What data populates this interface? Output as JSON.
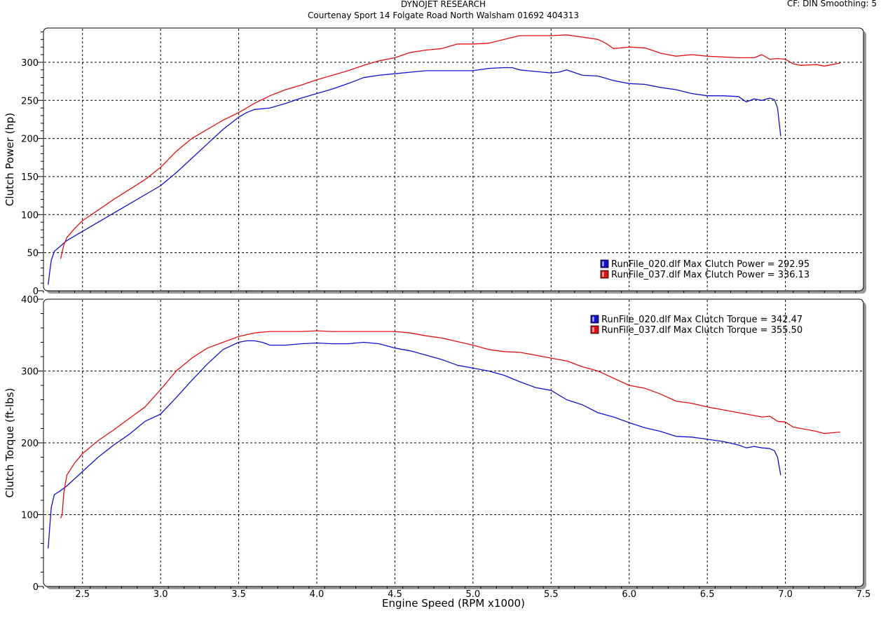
{
  "header": {
    "title": "DYNOJET RESEARCH",
    "subtitle": "Courtenay Sport 14 Folgate Road North Walsham 01692 404313",
    "meta": "CF: DIN  Smoothing: 5"
  },
  "colors": {
    "run_020": "#1010d0",
    "run_037": "#e01010",
    "grid": "#000000",
    "background": "#ffffff"
  },
  "chart_data": [
    {
      "type": "line",
      "title": "",
      "xlabel": "",
      "ylabel": "Clutch Power (hp)",
      "xlim": [
        2.25,
        7.5
      ],
      "ylim": [
        0,
        345
      ],
      "x_ticks": [
        2.5,
        3.0,
        3.5,
        4.0,
        4.5,
        5.0,
        5.5,
        6.0,
        6.5,
        7.0,
        7.5
      ],
      "y_ticks": [
        0,
        50,
        100,
        150,
        200,
        250,
        300
      ],
      "y_tick_labels": [
        "0",
        "50",
        "100",
        "150",
        "200",
        "250",
        "300"
      ],
      "grid": true,
      "legend_position": "bottom-right",
      "legend": [
        "RunFile_020.dlf Max Clutch Power = 292.95",
        "RunFile_037.dlf Max Clutch Power = 336.13"
      ],
      "series": [
        {
          "name": "RunFile_020.dlf",
          "color": "#1010d0",
          "x": [
            2.28,
            2.3,
            2.32,
            2.35,
            2.4,
            2.5,
            2.6,
            2.7,
            2.8,
            2.9,
            3.0,
            3.1,
            3.2,
            3.3,
            3.4,
            3.5,
            3.55,
            3.6,
            3.7,
            3.8,
            3.9,
            4.0,
            4.1,
            4.2,
            4.3,
            4.4,
            4.5,
            4.6,
            4.7,
            4.8,
            4.9,
            5.0,
            5.1,
            5.2,
            5.25,
            5.3,
            5.4,
            5.5,
            5.55,
            5.6,
            5.7,
            5.8,
            5.9,
            6.0,
            6.1,
            6.2,
            6.3,
            6.4,
            6.5,
            6.6,
            6.7,
            6.75,
            6.8,
            6.85,
            6.9,
            6.93,
            6.95,
            6.97
          ],
          "y": [
            8,
            40,
            52,
            57,
            66,
            78,
            90,
            102,
            114,
            126,
            138,
            155,
            174,
            193,
            212,
            228,
            234,
            238,
            240,
            246,
            253,
            259,
            265,
            272,
            280,
            283,
            285,
            287,
            289,
            289,
            289,
            289,
            292,
            293,
            293,
            290,
            288,
            286,
            287,
            290,
            283,
            282,
            276,
            272,
            271,
            267,
            264,
            259,
            256,
            256,
            255,
            248,
            252,
            250,
            253,
            251,
            240,
            203
          ],
          "note": ""
        },
        {
          "name": "RunFile_037.dlf",
          "color": "#e01010",
          "x": [
            2.36,
            2.38,
            2.4,
            2.45,
            2.5,
            2.6,
            2.7,
            2.8,
            2.9,
            3.0,
            3.1,
            3.2,
            3.3,
            3.4,
            3.5,
            3.6,
            3.7,
            3.8,
            3.9,
            4.0,
            4.1,
            4.2,
            4.3,
            4.4,
            4.5,
            4.6,
            4.7,
            4.8,
            4.9,
            5.0,
            5.1,
            5.2,
            5.3,
            5.4,
            5.5,
            5.6,
            5.7,
            5.8,
            5.85,
            5.9,
            6.0,
            6.1,
            6.2,
            6.3,
            6.4,
            6.5,
            6.6,
            6.7,
            6.8,
            6.85,
            6.9,
            6.95,
            7.0,
            7.05,
            7.1,
            7.2,
            7.25,
            7.3,
            7.35
          ],
          "y": [
            42,
            60,
            70,
            82,
            92,
            106,
            120,
            133,
            146,
            162,
            183,
            200,
            212,
            224,
            234,
            246,
            256,
            264,
            270,
            277,
            283,
            289,
            296,
            302,
            306,
            313,
            316,
            318,
            324,
            324,
            325,
            330,
            335,
            335,
            335,
            336,
            333,
            330,
            325,
            318,
            320,
            319,
            312,
            308,
            310,
            308,
            307,
            306,
            306,
            310,
            304,
            305,
            304,
            298,
            296,
            297,
            295,
            297,
            299
          ]
        }
      ]
    },
    {
      "type": "line",
      "title": "",
      "xlabel": "Engine Speed (RPM x1000)",
      "ylabel": "Clutch Torque (ft-lbs)",
      "xlim": [
        2.25,
        7.5
      ],
      "ylim": [
        0,
        400
      ],
      "x_ticks": [
        2.5,
        3.0,
        3.5,
        4.0,
        4.5,
        5.0,
        5.5,
        6.0,
        6.5,
        7.0,
        7.5
      ],
      "x_tick_labels": [
        "2.5",
        "3.0",
        "3.5",
        "4.0",
        "4.5",
        "5.0",
        "5.5",
        "6.0",
        "6.5",
        "7.0",
        "7.5"
      ],
      "y_ticks": [
        0,
        100,
        200,
        300,
        400
      ],
      "y_tick_labels": [
        "0",
        "100",
        "200",
        "300",
        "400"
      ],
      "grid": true,
      "legend_position": "top-right",
      "legend": [
        "RunFile_020.dlf Max Clutch Torque = 342.47",
        "RunFile_037.dlf Max Clutch Torque = 355.50"
      ],
      "series": [
        {
          "name": "RunFile_020.dlf",
          "color": "#1010d0",
          "x": [
            2.28,
            2.3,
            2.32,
            2.35,
            2.4,
            2.5,
            2.6,
            2.7,
            2.8,
            2.9,
            3.0,
            3.1,
            3.2,
            3.3,
            3.4,
            3.5,
            3.55,
            3.6,
            3.65,
            3.7,
            3.8,
            3.9,
            4.0,
            4.1,
            4.2,
            4.3,
            4.4,
            4.5,
            4.6,
            4.7,
            4.8,
            4.9,
            5.0,
            5.1,
            5.2,
            5.3,
            5.4,
            5.5,
            5.6,
            5.7,
            5.8,
            5.9,
            6.0,
            6.1,
            6.2,
            6.3,
            6.4,
            6.5,
            6.6,
            6.7,
            6.75,
            6.8,
            6.85,
            6.9,
            6.93,
            6.95,
            6.97
          ],
          "y": [
            53,
            110,
            128,
            132,
            140,
            160,
            180,
            197,
            212,
            230,
            240,
            263,
            287,
            310,
            330,
            340,
            342,
            342,
            340,
            336,
            336,
            338,
            339,
            338,
            338,
            340,
            338,
            332,
            328,
            322,
            316,
            308,
            304,
            300,
            294,
            285,
            277,
            273,
            260,
            253,
            242,
            236,
            228,
            221,
            216,
            209,
            208,
            205,
            202,
            197,
            193,
            195,
            193,
            192,
            189,
            180,
            155
          ]
        },
        {
          "name": "RunFile_037.dlf",
          "color": "#e01010",
          "x": [
            2.36,
            2.37,
            2.38,
            2.4,
            2.45,
            2.5,
            2.6,
            2.7,
            2.8,
            2.9,
            3.0,
            3.1,
            3.2,
            3.3,
            3.4,
            3.5,
            3.6,
            3.7,
            3.8,
            3.9,
            4.0,
            4.1,
            4.2,
            4.3,
            4.4,
            4.5,
            4.6,
            4.7,
            4.8,
            4.9,
            5.0,
            5.1,
            5.2,
            5.3,
            5.4,
            5.5,
            5.6,
            5.7,
            5.8,
            5.9,
            6.0,
            6.1,
            6.2,
            6.3,
            6.4,
            6.5,
            6.6,
            6.7,
            6.8,
            6.85,
            6.9,
            6.95,
            7.0,
            7.05,
            7.1,
            7.2,
            7.25,
            7.3,
            7.35
          ],
          "y": [
            95,
            100,
            130,
            155,
            172,
            185,
            203,
            218,
            234,
            250,
            274,
            300,
            318,
            332,
            340,
            348,
            353,
            355,
            355,
            355,
            356,
            355,
            355,
            355,
            355,
            355,
            353,
            349,
            346,
            341,
            336,
            330,
            327,
            326,
            322,
            318,
            314,
            306,
            300,
            290,
            280,
            276,
            268,
            258,
            255,
            250,
            246,
            242,
            238,
            236,
            237,
            230,
            229,
            222,
            220,
            216,
            213,
            214,
            215
          ]
        }
      ]
    }
  ]
}
